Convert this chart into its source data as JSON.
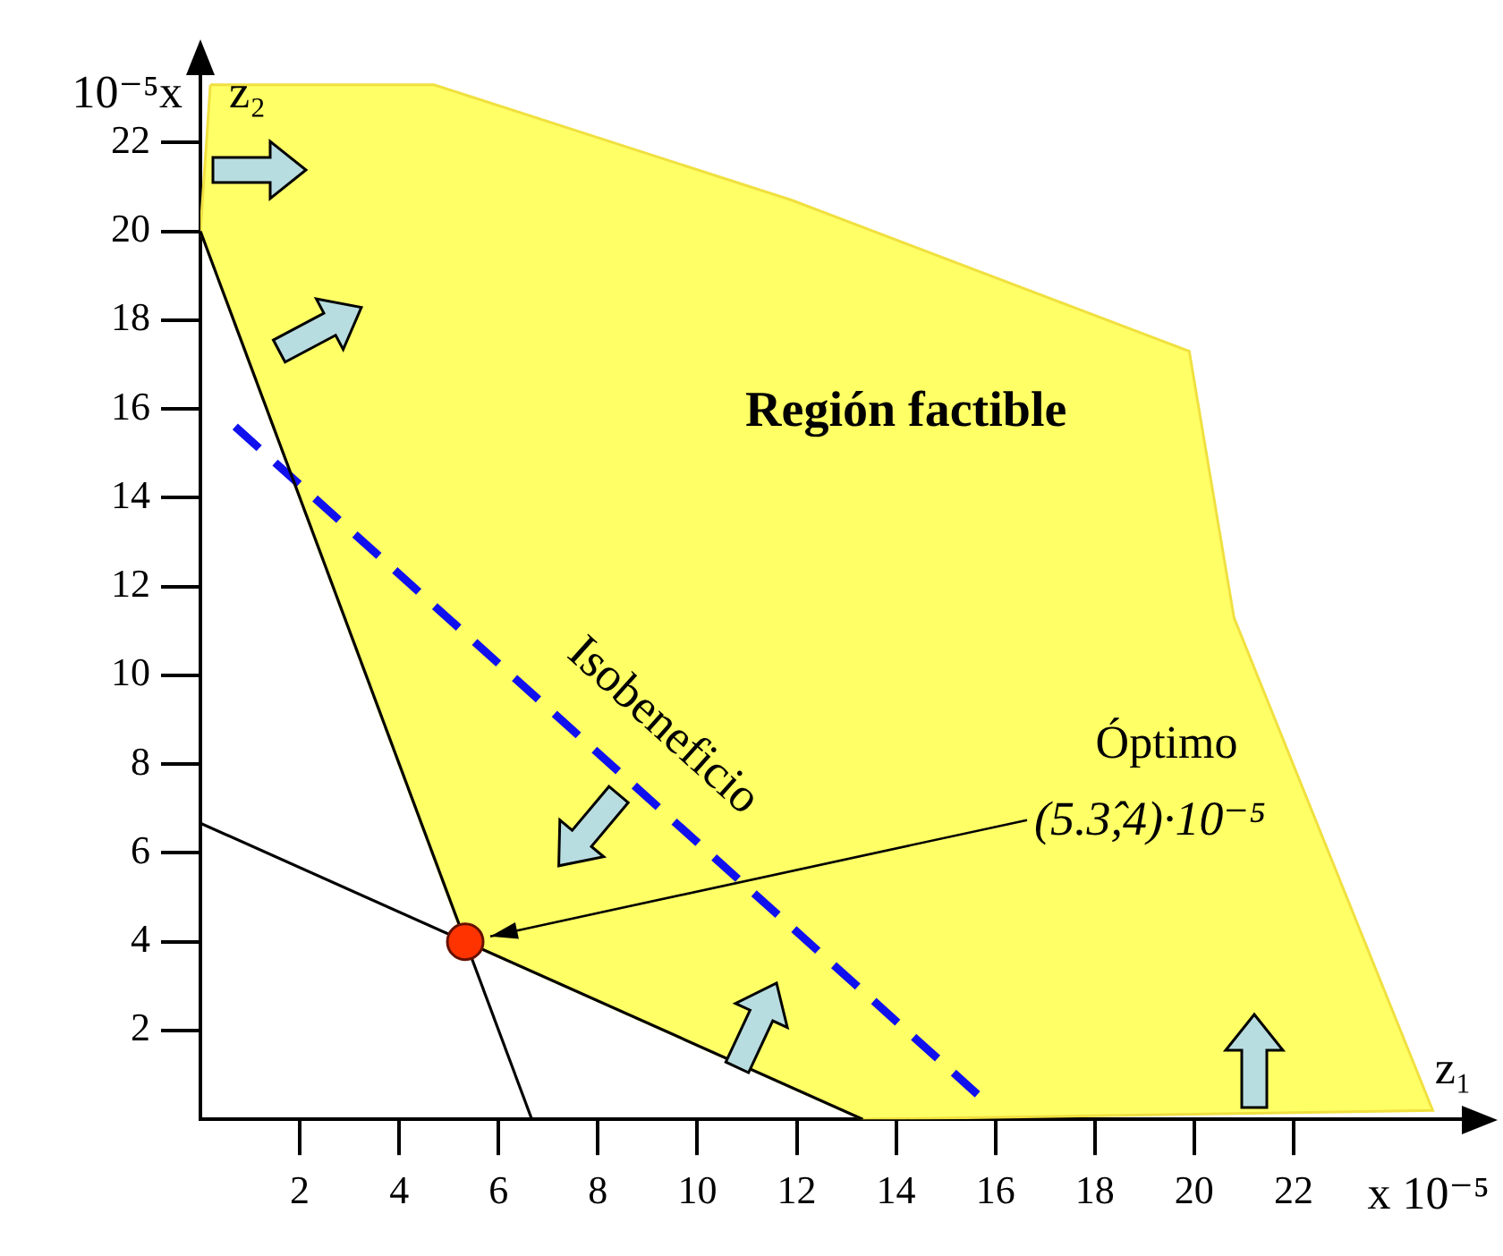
{
  "chart_data": {
    "type": "line",
    "xlabel": "z₁",
    "ylabel": "z₂",
    "xlim": [
      0,
      25.8
    ],
    "ylim": [
      0,
      24
    ],
    "xticks": [
      2,
      4,
      6,
      8,
      10,
      12,
      14,
      16,
      18,
      20,
      22
    ],
    "yticks": [
      2,
      4,
      6,
      8,
      10,
      12,
      14,
      16,
      18,
      20,
      22
    ],
    "grid": false,
    "legend": false,
    "series": [
      {
        "name": "Región factible",
        "type": "area",
        "color": "#ffff66",
        "x": [
          0.2,
          4.7,
          11.9,
          19.9,
          20.8,
          24.8,
          13.33,
          5.33,
          0,
          0.2
        ],
        "values": [
          23.3,
          23.3,
          20.7,
          17.3,
          11.3,
          0.2,
          0,
          4,
          20,
          23.3
        ]
      },
      {
        "color": "#000000",
        "x": [
          0,
          6.67
        ],
        "values": [
          20,
          0
        ]
      },
      {
        "color": "#000000",
        "x": [
          0,
          13.33
        ],
        "values": [
          6.67,
          0
        ]
      },
      {
        "name": "Isobeneficio",
        "line_style": "dashed",
        "color": "#1010ee",
        "x": [
          0.7,
          15.7
        ],
        "values": [
          15.6,
          0.5
        ]
      },
      {
        "type": "scatter",
        "marker": "circle",
        "color": "#ff3300",
        "x": [
          5.33
        ],
        "values": [
          4
        ]
      }
    ],
    "annotations": [
      "10⁻⁵x",
      "x 10⁻⁵",
      "Óptimo",
      "(5.3̂,4)·10⁻⁵"
    ]
  }
}
